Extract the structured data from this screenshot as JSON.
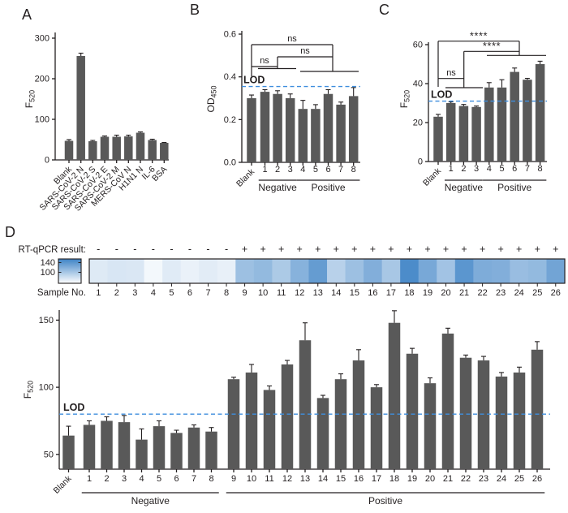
{
  "panels": [
    {
      "label": "A"
    },
    {
      "label": "B"
    },
    {
      "label": "C"
    },
    {
      "label": "D"
    }
  ],
  "colors": {
    "bar": "#595959",
    "axis": "#231f20",
    "lod_blue": "#3e8ede",
    "heat_low": "#ffffff",
    "heat_high": "#3e83c6",
    "background": "#ffffff"
  },
  "chart_data": [
    {
      "id": "A",
      "type": "bar",
      "categories": [
        "Blank",
        "SARS-CoV-2 N",
        "SARS-CoV-2 S",
        "SARS-CoV-2 E",
        "SARS-CoV-2 M",
        "MERS-CoV N",
        "H1N1 N",
        "IL-6",
        "BSA"
      ],
      "values": [
        47,
        256,
        46,
        57,
        57,
        58,
        67,
        49,
        42
      ],
      "errors": [
        3,
        7,
        2,
        2,
        4,
        3,
        2,
        2,
        1
      ],
      "ylabel_base": "F",
      "ylabel_sub": "520",
      "ylim": [
        0,
        310
      ],
      "yticks": [
        0,
        100,
        200,
        300
      ],
      "grid": false
    },
    {
      "id": "B",
      "type": "bar",
      "categories": [
        "Blank",
        "1",
        "2",
        "3",
        "4",
        "5",
        "6",
        "7",
        "8"
      ],
      "values": [
        0.3,
        0.33,
        0.32,
        0.3,
        0.25,
        0.25,
        0.32,
        0.27,
        0.31
      ],
      "errors": [
        0.015,
        0.01,
        0.015,
        0.02,
        0.04,
        0.02,
        0.02,
        0.012,
        0.04
      ],
      "ylabel_base": "OD",
      "ylabel_sub": "450",
      "ylim": [
        0,
        0.6
      ],
      "yticks": [
        0,
        0.2,
        0.4,
        0.6
      ],
      "ytick_decimals": 1,
      "lod": {
        "label": "LOD",
        "value": 0.355
      },
      "groups": [
        {
          "label": "Negative",
          "from": "1",
          "to": "3"
        },
        {
          "label": "Positive",
          "from": "4",
          "to": "8"
        }
      ],
      "significance": [
        {
          "label": "ns",
          "between": "Blank vs 1-3"
        },
        {
          "label": "ns",
          "between": "1-3 vs 4-8"
        },
        {
          "label": "ns",
          "between": "Blank vs 4-8"
        }
      ],
      "grid": false
    },
    {
      "id": "C",
      "type": "bar",
      "categories": [
        "Blank",
        "1",
        "2",
        "3",
        "4",
        "5",
        "6",
        "7",
        "8"
      ],
      "values": [
        23,
        30,
        28.5,
        28,
        38,
        38,
        46,
        42,
        50
      ],
      "errors": [
        1.2,
        0.6,
        0.8,
        0.5,
        2.5,
        4,
        2,
        0.7,
        1.5
      ],
      "ylabel_base": "F",
      "ylabel_sub": "520",
      "ylim": [
        0,
        66
      ],
      "yticks": [
        0,
        20,
        40,
        60
      ],
      "lod": {
        "label": "LOD",
        "value": 31
      },
      "groups": [
        {
          "label": "Negative",
          "from": "1",
          "to": "3"
        },
        {
          "label": "Positive",
          "from": "4",
          "to": "8"
        }
      ],
      "significance": [
        {
          "label": "ns",
          "between": "Blank vs 1-3"
        },
        {
          "label": "****",
          "between": "1-3 vs 4-8"
        },
        {
          "label": "****",
          "between": "Blank vs 4-8"
        }
      ],
      "grid": false
    },
    {
      "id": "D",
      "type": "heatmap+bar",
      "heatmap": {
        "row_label": "RT-qPCR result:",
        "axis_label": "Sample No.",
        "samples": [
          "1",
          "2",
          "3",
          "4",
          "5",
          "6",
          "7",
          "8",
          "9",
          "10",
          "11",
          "12",
          "13",
          "14",
          "15",
          "16",
          "17",
          "18",
          "19",
          "20",
          "21",
          "22",
          "23",
          "24",
          "25",
          "26"
        ],
        "rt_qpcr": [
          "-",
          "-",
          "-",
          "-",
          "-",
          "-",
          "-",
          "-",
          "+",
          "+",
          "+",
          "+",
          "+",
          "+",
          "+",
          "+",
          "+",
          "+",
          "+",
          "+",
          "+",
          "+",
          "+",
          "+",
          "+",
          "+"
        ],
        "values": [
          72,
          75,
          74,
          61,
          71,
          66,
          70,
          67,
          106,
          111,
          98,
          117,
          135,
          92,
          106,
          120,
          100,
          148,
          125,
          103,
          140,
          122,
          120,
          108,
          111,
          128
        ],
        "colorbar": {
          "ticks": [
            140,
            100
          ],
          "domain": [
            55,
            155
          ]
        }
      },
      "bars": {
        "categories": [
          "Blank",
          "1",
          "2",
          "3",
          "4",
          "5",
          "6",
          "7",
          "8",
          "9",
          "10",
          "11",
          "12",
          "13",
          "14",
          "15",
          "16",
          "17",
          "18",
          "19",
          "20",
          "21",
          "22",
          "23",
          "24",
          "25",
          "26"
        ],
        "values": [
          64,
          72,
          75,
          74,
          61,
          71,
          66,
          70,
          67,
          106,
          111,
          98,
          117,
          135,
          92,
          106,
          120,
          100,
          148,
          125,
          103,
          140,
          122,
          120,
          108,
          111,
          128
        ],
        "errors": [
          7,
          3,
          3,
          5,
          8,
          4,
          2,
          2,
          3,
          1.5,
          6,
          3,
          3,
          13,
          2,
          4,
          8,
          2,
          9,
          4,
          4,
          4,
          2,
          3,
          3,
          4,
          6
        ],
        "ylabel_base": "F",
        "ylabel_sub": "520",
        "ylim": [
          39,
          157
        ],
        "yticks": [
          50,
          100,
          150
        ],
        "lod": {
          "label": "LOD",
          "value": 80
        },
        "groups": [
          {
            "label": "Negative",
            "from": "1",
            "to": "8"
          },
          {
            "label": "Positive",
            "from": "9",
            "to": "26"
          }
        ],
        "grid": false
      }
    }
  ]
}
